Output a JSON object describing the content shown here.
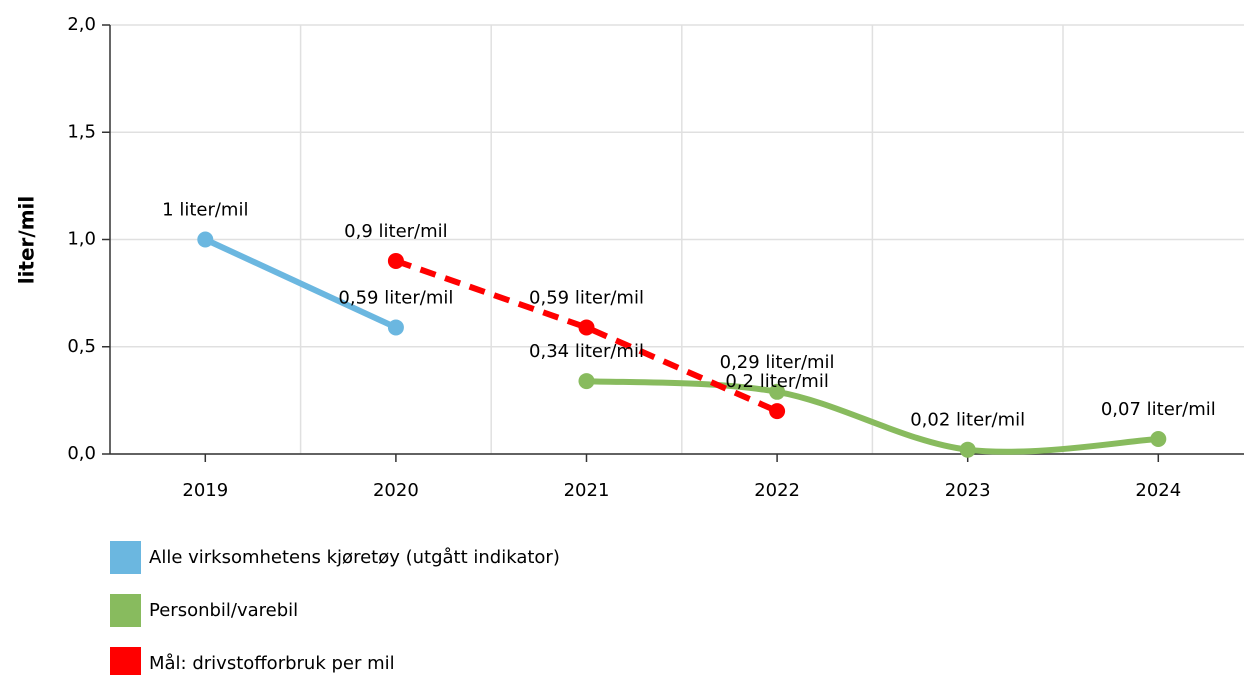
{
  "chart_data": {
    "type": "line",
    "y_label": "liter/mil",
    "categories": [
      "2019",
      "2020",
      "2021",
      "2022",
      "2023",
      "2024"
    ],
    "ylim": [
      0,
      2
    ],
    "yticks": [
      {
        "value": 0,
        "label": "0,0"
      },
      {
        "value": 0.5,
        "label": "0,5"
      },
      {
        "value": 1,
        "label": "1,0"
      },
      {
        "value": 1.5,
        "label": "1,5"
      },
      {
        "value": 2,
        "label": "2,0"
      }
    ],
    "grid": true,
    "legend": "bottom",
    "series": [
      {
        "name": "Alle virksomhetens kjøretøy (utgått indikator)",
        "color": "#6bb7e0",
        "style": "solid",
        "smooth": false,
        "values": [
          1,
          0.59,
          null,
          null,
          null,
          null
        ],
        "value_labels": [
          "1 liter/mil",
          "0,59 liter/mil",
          null,
          null,
          null,
          null
        ]
      },
      {
        "name": "Personbil/varebil",
        "color": "#88bb5e",
        "style": "solid",
        "smooth": true,
        "values": [
          null,
          null,
          0.34,
          0.29,
          0.02,
          0.07
        ],
        "value_labels": [
          null,
          null,
          "0,34 liter/mil",
          "0,29 liter/mil",
          "0,02 liter/mil",
          "0,07 liter/mil"
        ]
      },
      {
        "name": "Mål: drivstofforbruk per mil",
        "color": "#ff0000",
        "style": "dashed",
        "smooth": false,
        "values": [
          null,
          0.9,
          0.59,
          0.2,
          null,
          null
        ],
        "value_labels": [
          null,
          "0,9 liter/mil",
          "0,59 liter/mil",
          "0,2 liter/mil",
          null,
          null
        ]
      }
    ]
  }
}
